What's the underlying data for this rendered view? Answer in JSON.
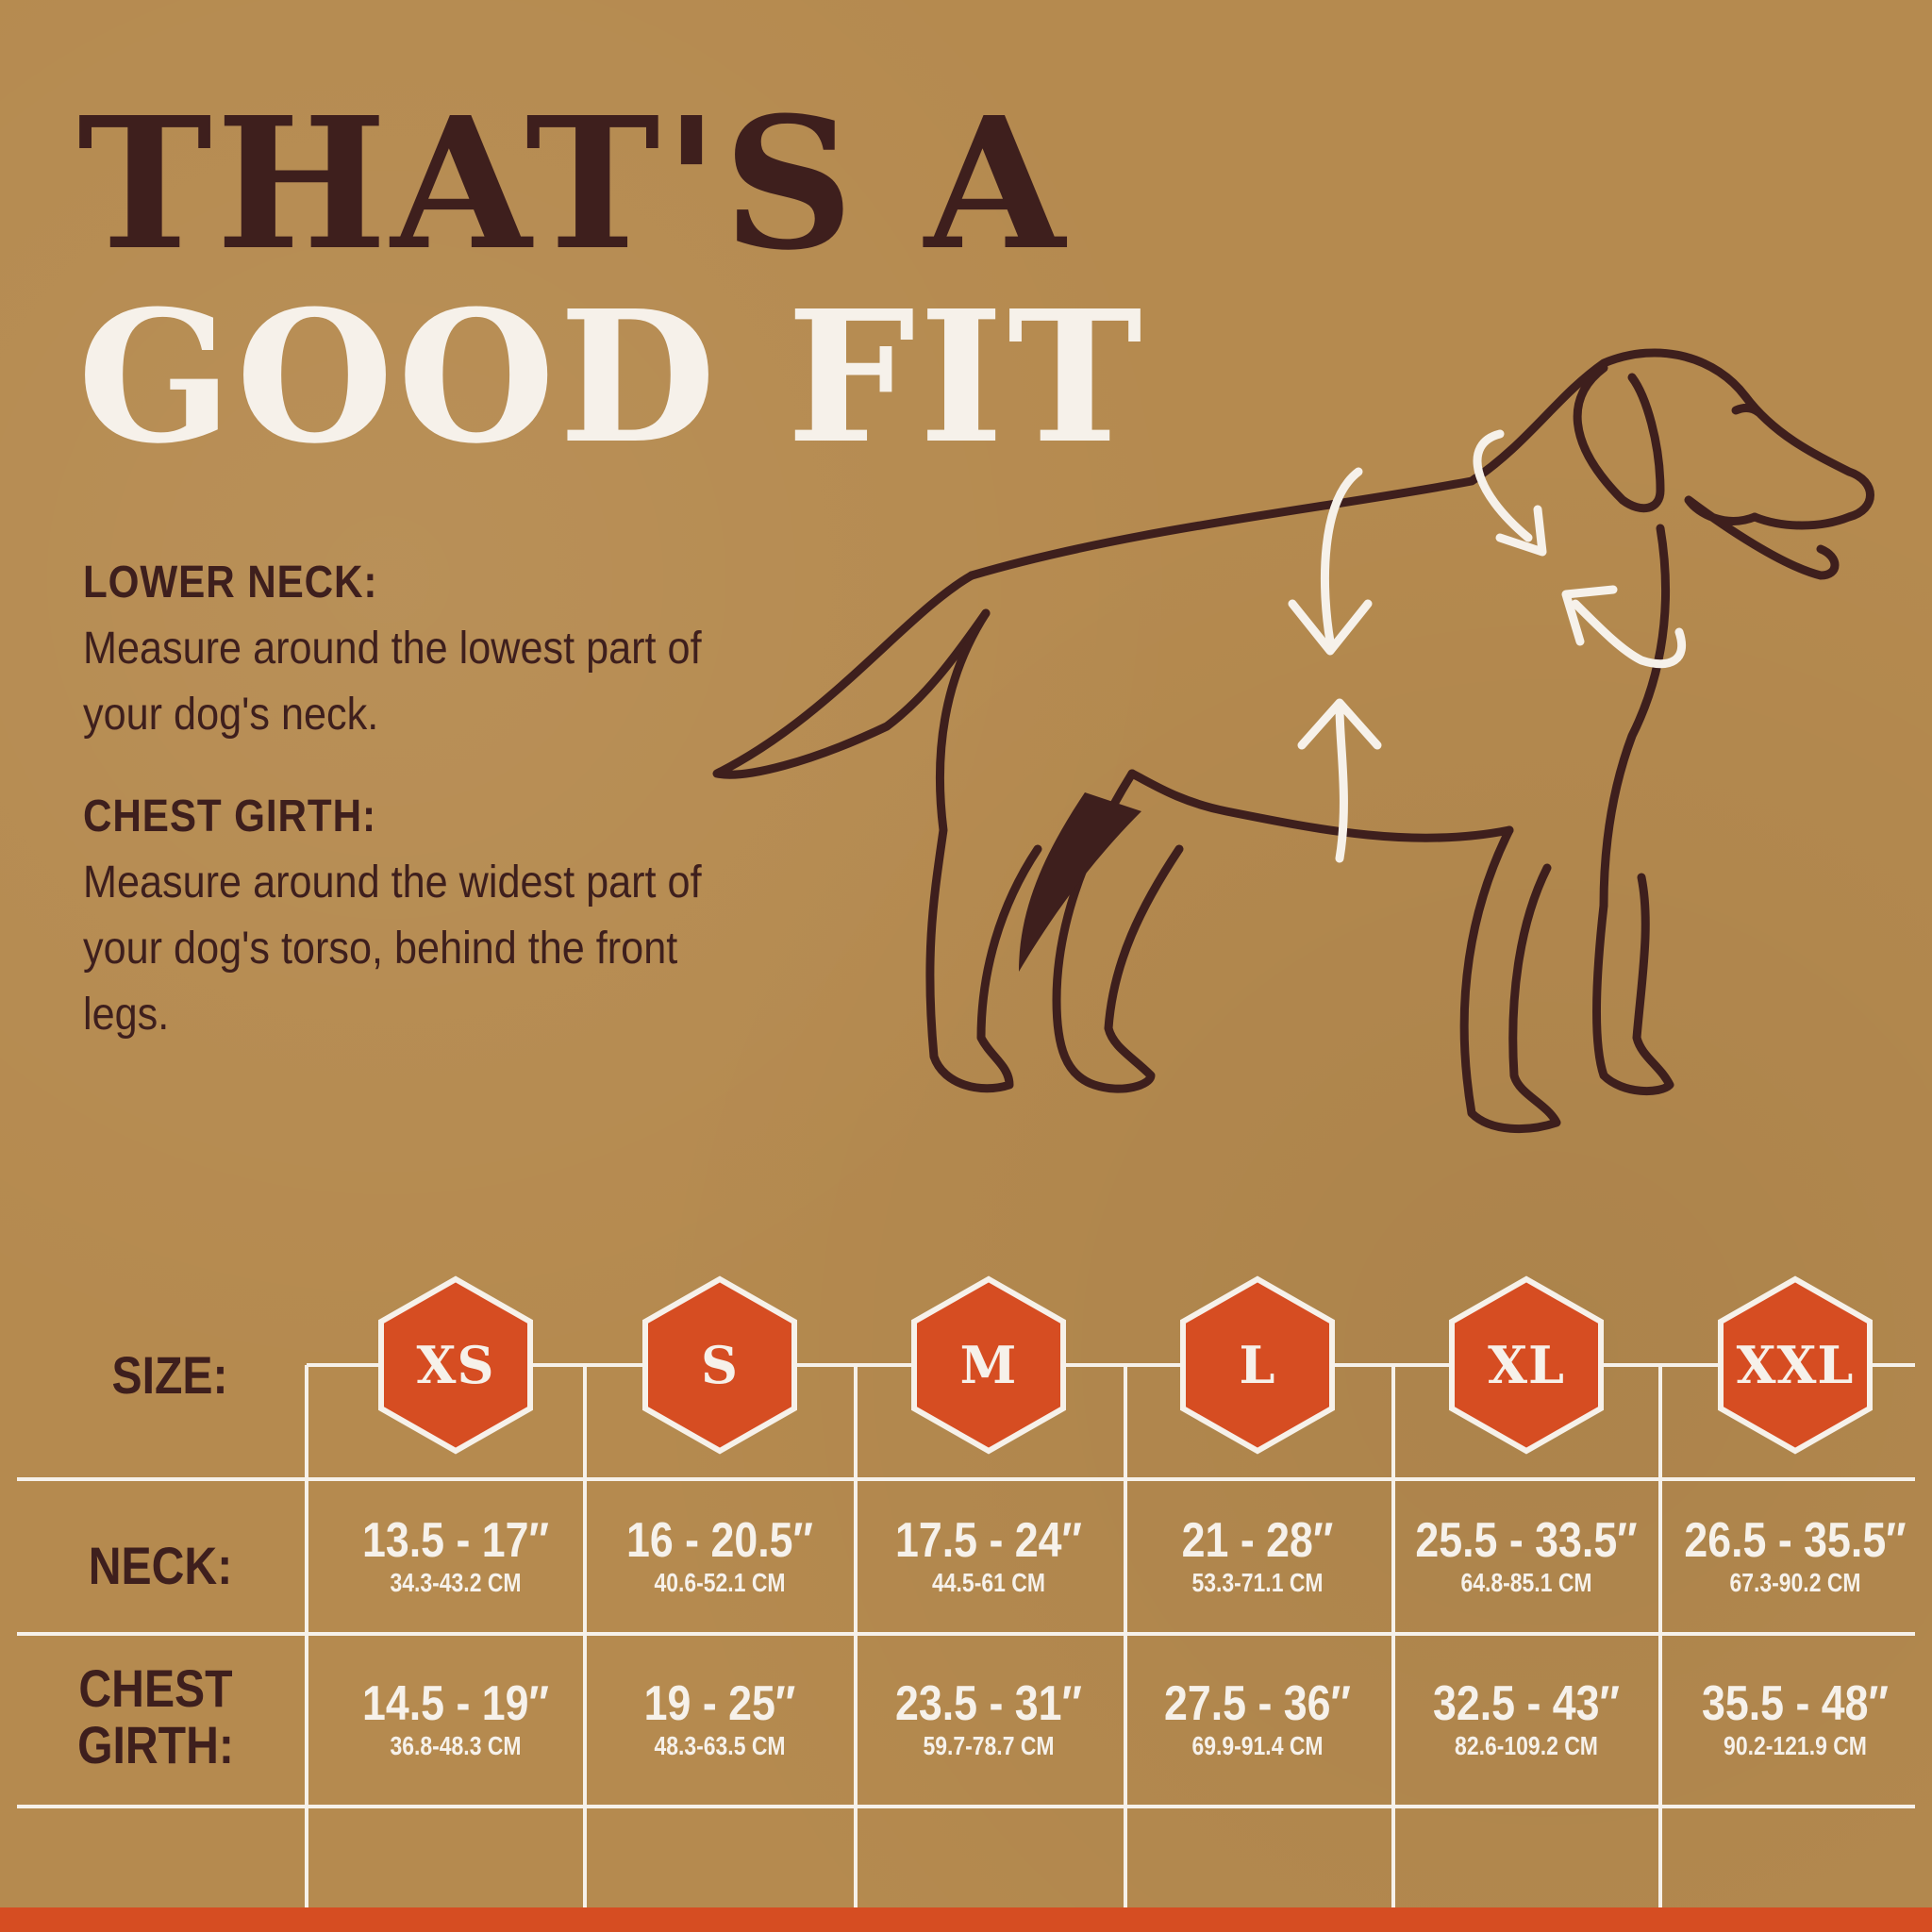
{
  "title": {
    "line1": "THAT'S A",
    "line2": "GOOD FIT"
  },
  "instructions": {
    "neck": {
      "label": "LOWER NECK:",
      "text": "Measure around the lowest part of your dog's neck."
    },
    "chest": {
      "label": "CHEST GIRTH:",
      "text": "Measure around the widest part of your dog's torso, behind the front legs."
    }
  },
  "illustration": {
    "icon": "dog-icon"
  },
  "table": {
    "row_labels": {
      "size": "SIZE:",
      "neck": "NECK:",
      "chest": "CHEST GIRTH:"
    },
    "sizes": [
      {
        "size": "XS",
        "neck_in": "13.5 - 17″",
        "neck_cm": "34.3-43.2 CM",
        "chest_in": "14.5 - 19″",
        "chest_cm": "36.8-48.3 CM"
      },
      {
        "size": "S",
        "neck_in": "16 - 20.5″",
        "neck_cm": "40.6-52.1 CM",
        "chest_in": "19 - 25″",
        "chest_cm": "48.3-63.5 CM"
      },
      {
        "size": "M",
        "neck_in": "17.5 - 24″",
        "neck_cm": "44.5-61 CM",
        "chest_in": "23.5 - 31″",
        "chest_cm": "59.7-78.7 CM"
      },
      {
        "size": "L",
        "neck_in": "21 - 28″",
        "neck_cm": "53.3-71.1 CM",
        "chest_in": "27.5 - 36″",
        "chest_cm": "69.9-91.4 CM"
      },
      {
        "size": "XL",
        "neck_in": "25.5 - 33.5″",
        "neck_cm": "64.8-85.1 CM",
        "chest_in": "32.5 - 43″",
        "chest_cm": "82.6-109.2 CM"
      },
      {
        "size": "XXL",
        "neck_in": "26.5 - 35.5″",
        "neck_cm": "67.3-90.2 CM",
        "chest_in": "35.5 - 48″",
        "chest_cm": "90.2-121.9 CM"
      }
    ]
  },
  "colors": {
    "background": "#b58a4f",
    "dark_brown": "#3e1f1d",
    "cream": "#f6f1ea",
    "accent_orange": "#d64d22"
  }
}
